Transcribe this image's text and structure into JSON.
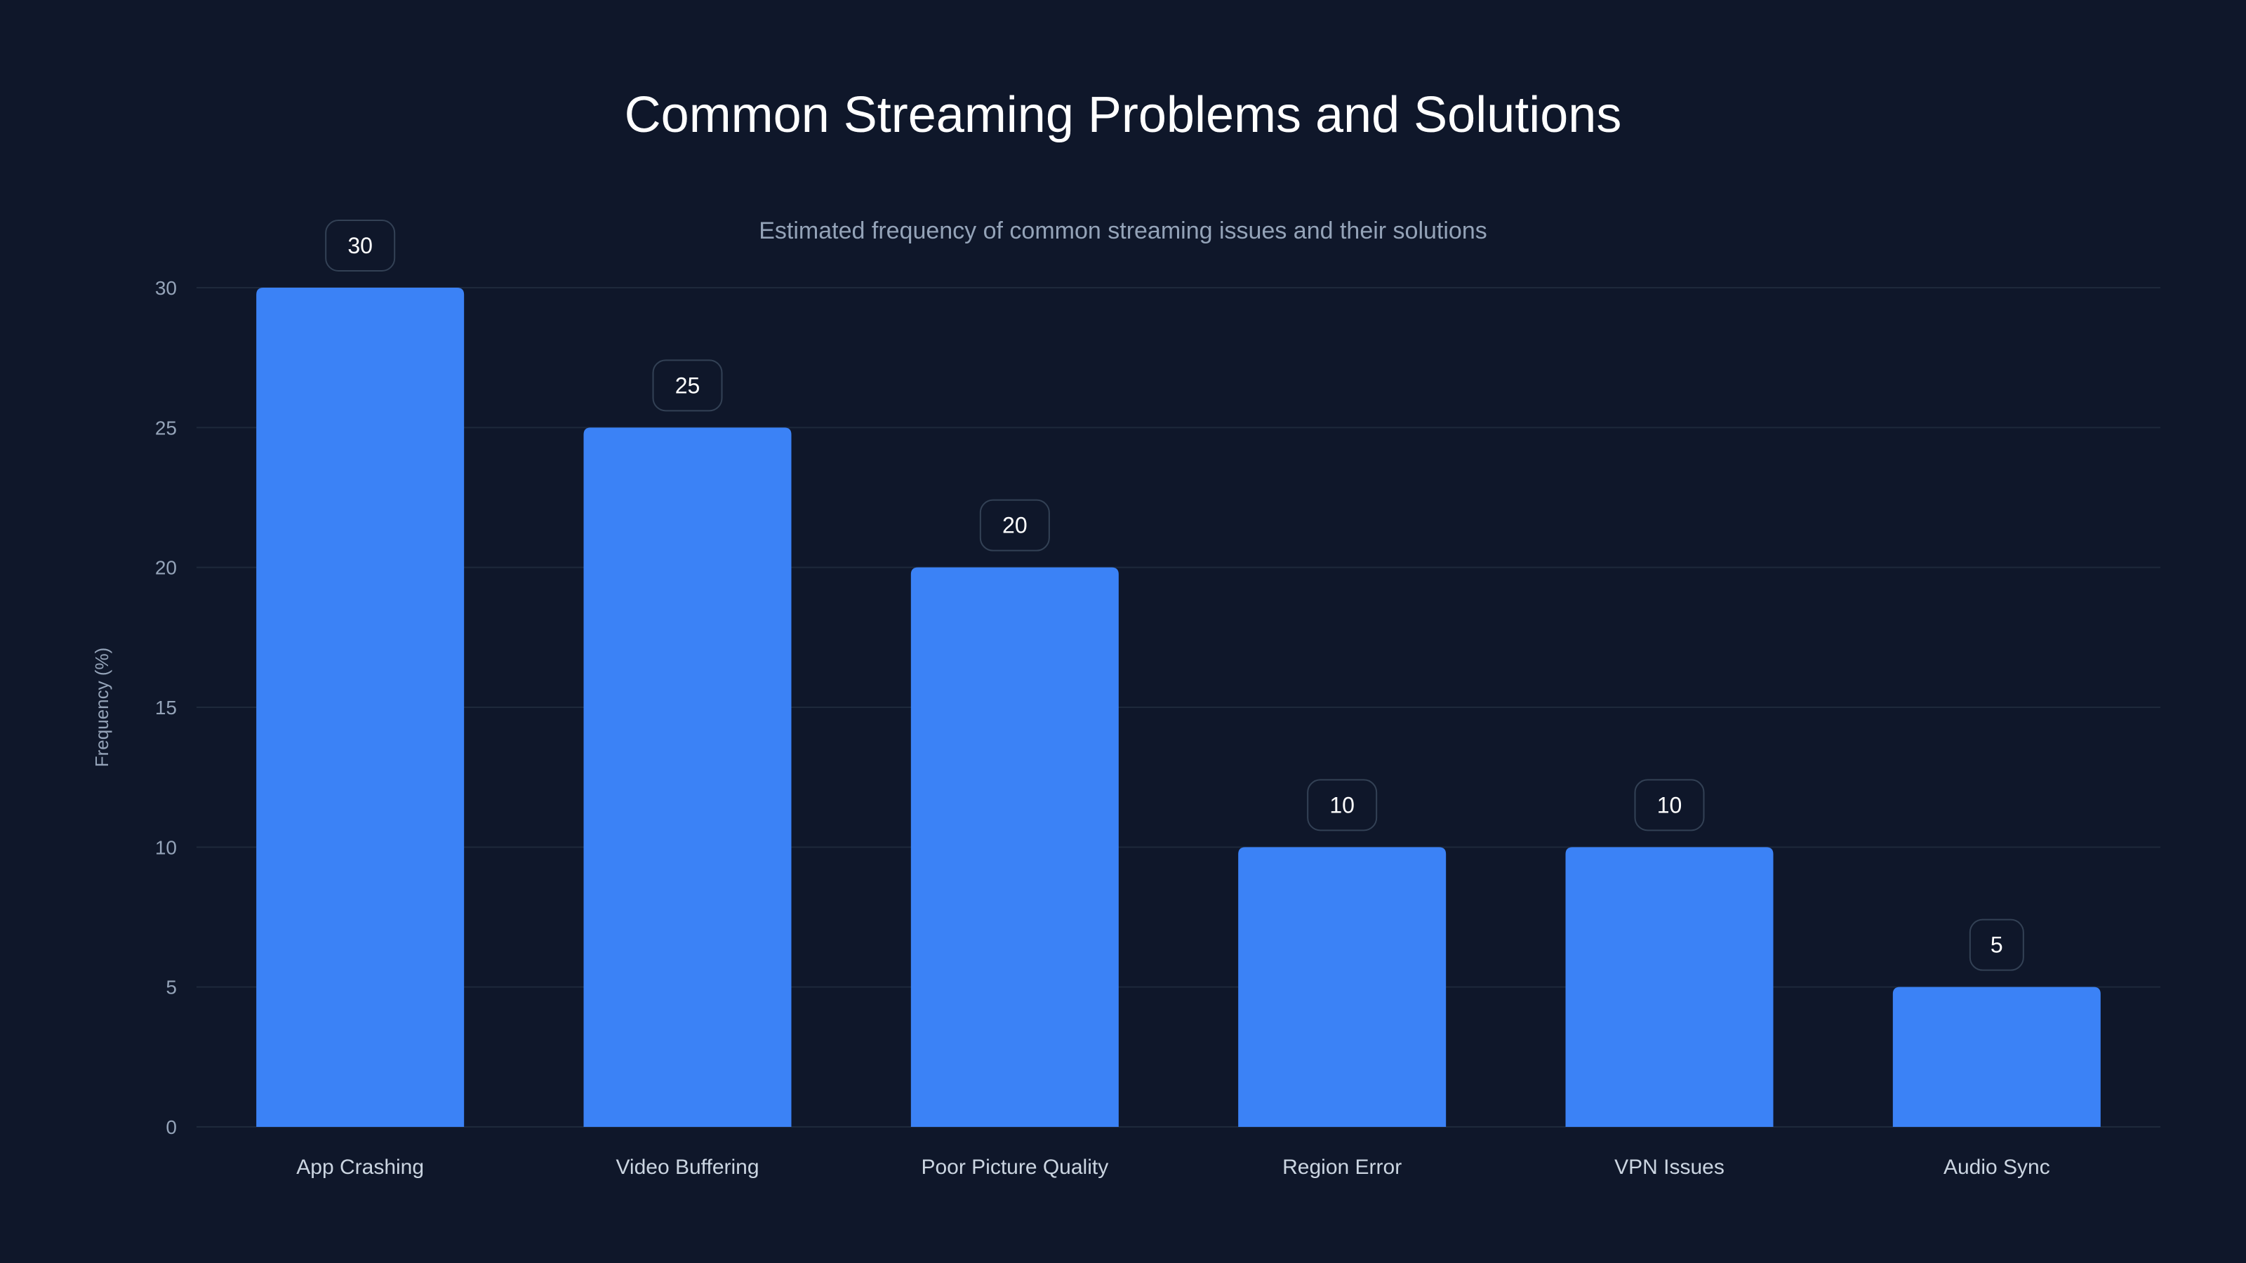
{
  "chart_data": {
    "type": "bar",
    "title": "Common Streaming Problems and Solutions",
    "subtitle": "Estimated frequency of common streaming issues and their solutions",
    "xlabel": "",
    "ylabel": "Frequency (%)",
    "categories": [
      "App Crashing",
      "Video Buffering",
      "Poor Picture Quality",
      "Region Error",
      "VPN Issues",
      "Audio Sync"
    ],
    "values": [
      30,
      25,
      20,
      10,
      10,
      5
    ],
    "ylim": [
      0,
      30
    ],
    "yticks": [
      0,
      5,
      10,
      15,
      20,
      25,
      30
    ],
    "grid": true,
    "data_labels": true,
    "colors": {
      "bar": "#3b82f6",
      "background": "#0f172a",
      "grid": "#1e293b",
      "label_box_border": "#334155"
    }
  }
}
